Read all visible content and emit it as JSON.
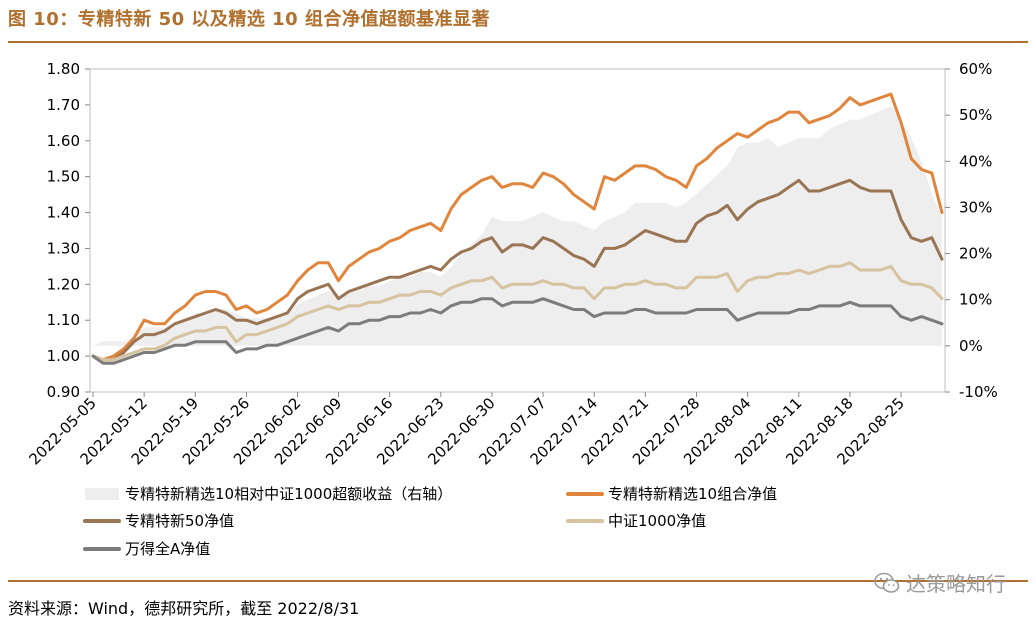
{
  "title": "图 10：专精特新 50 以及精选 10 组合净值超额基准显著",
  "source": "资料来源：Wind，德邦研究所，截至 2022/8/31",
  "watermark": "达策略知行",
  "chart_data": {
    "type": "line",
    "left_ylim": [
      0.9,
      1.8
    ],
    "left_yticks": [
      "0.90",
      "1.00",
      "1.10",
      "1.20",
      "1.30",
      "1.40",
      "1.50",
      "1.60",
      "1.70",
      "1.80"
    ],
    "right_ylim": [
      -0.1,
      0.6
    ],
    "right_yticks": [
      "-10%",
      "0%",
      "10%",
      "20%",
      "30%",
      "40%",
      "50%",
      "60%"
    ],
    "x_ticks": [
      "2022-05-05",
      "2022-05-12",
      "2022-05-19",
      "2022-05-26",
      "2022-06-02",
      "2022-06-09",
      "2022-06-16",
      "2022-06-23",
      "2022-06-30",
      "2022-07-07",
      "2022-07-14",
      "2022-07-21",
      "2022-07-28",
      "2022-08-04",
      "2022-08-11",
      "2022-08-18",
      "2022-08-25"
    ],
    "x_dates": [
      "2022-05-05",
      "2022-05-06",
      "2022-05-09",
      "2022-05-10",
      "2022-05-11",
      "2022-05-12",
      "2022-05-13",
      "2022-05-16",
      "2022-05-17",
      "2022-05-18",
      "2022-05-19",
      "2022-05-20",
      "2022-05-23",
      "2022-05-24",
      "2022-05-25",
      "2022-05-26",
      "2022-05-27",
      "2022-05-30",
      "2022-05-31",
      "2022-06-01",
      "2022-06-02",
      "2022-06-06",
      "2022-06-07",
      "2022-06-08",
      "2022-06-09",
      "2022-06-10",
      "2022-06-13",
      "2022-06-14",
      "2022-06-15",
      "2022-06-16",
      "2022-06-17",
      "2022-06-20",
      "2022-06-21",
      "2022-06-22",
      "2022-06-23",
      "2022-06-24",
      "2022-06-27",
      "2022-06-28",
      "2022-06-29",
      "2022-06-30",
      "2022-07-01",
      "2022-07-04",
      "2022-07-05",
      "2022-07-06",
      "2022-07-07",
      "2022-07-08",
      "2022-07-11",
      "2022-07-12",
      "2022-07-13",
      "2022-07-14",
      "2022-07-15",
      "2022-07-18",
      "2022-07-19",
      "2022-07-20",
      "2022-07-21",
      "2022-07-22",
      "2022-07-25",
      "2022-07-26",
      "2022-07-27",
      "2022-07-28",
      "2022-07-29",
      "2022-08-01",
      "2022-08-02",
      "2022-08-03",
      "2022-08-04",
      "2022-08-05",
      "2022-08-08",
      "2022-08-09",
      "2022-08-10",
      "2022-08-11",
      "2022-08-12",
      "2022-08-15",
      "2022-08-16",
      "2022-08-17",
      "2022-08-18",
      "2022-08-19",
      "2022-08-22",
      "2022-08-23",
      "2022-08-24",
      "2022-08-25",
      "2022-08-26",
      "2022-08-29",
      "2022-08-30",
      "2022-08-31"
    ],
    "series": [
      {
        "name": "专精特新精选10相对中证1000超额收益（右轴）",
        "axis": "right",
        "style": "area",
        "color": "#eeeeee",
        "values": [
          0.0,
          0.01,
          0.01,
          0.01,
          0.02,
          0.04,
          0.04,
          0.04,
          0.05,
          0.05,
          0.07,
          0.07,
          0.08,
          0.08,
          0.07,
          0.06,
          0.06,
          0.06,
          0.06,
          0.07,
          0.09,
          0.1,
          0.11,
          0.12,
          0.11,
          0.12,
          0.12,
          0.13,
          0.13,
          0.14,
          0.15,
          0.15,
          0.16,
          0.16,
          0.15,
          0.17,
          0.2,
          0.22,
          0.24,
          0.28,
          0.27,
          0.27,
          0.27,
          0.28,
          0.29,
          0.28,
          0.27,
          0.27,
          0.26,
          0.25,
          0.27,
          0.28,
          0.29,
          0.31,
          0.31,
          0.31,
          0.31,
          0.3,
          0.31,
          0.33,
          0.35,
          0.37,
          0.39,
          0.43,
          0.44,
          0.44,
          0.45,
          0.43,
          0.44,
          0.45,
          0.45,
          0.45,
          0.47,
          0.48,
          0.49,
          0.49,
          0.5,
          0.51,
          0.52,
          0.49,
          0.45,
          0.4,
          0.33,
          0.28
        ]
      },
      {
        "name": "专精特新精选10组合净值",
        "axis": "left",
        "style": "line",
        "color": "#e0853c",
        "values": [
          1.0,
          0.99,
          1.0,
          1.02,
          1.05,
          1.1,
          1.09,
          1.09,
          1.12,
          1.14,
          1.17,
          1.18,
          1.18,
          1.17,
          1.13,
          1.14,
          1.12,
          1.13,
          1.15,
          1.17,
          1.21,
          1.24,
          1.26,
          1.26,
          1.21,
          1.25,
          1.27,
          1.29,
          1.3,
          1.32,
          1.33,
          1.35,
          1.36,
          1.37,
          1.35,
          1.41,
          1.45,
          1.47,
          1.49,
          1.5,
          1.47,
          1.48,
          1.48,
          1.47,
          1.51,
          1.5,
          1.48,
          1.45,
          1.43,
          1.41,
          1.5,
          1.49,
          1.51,
          1.53,
          1.53,
          1.52,
          1.5,
          1.49,
          1.47,
          1.53,
          1.55,
          1.58,
          1.6,
          1.62,
          1.61,
          1.63,
          1.65,
          1.66,
          1.68,
          1.68,
          1.65,
          1.66,
          1.67,
          1.69,
          1.72,
          1.7,
          1.71,
          1.72,
          1.73,
          1.65,
          1.55,
          1.52,
          1.51,
          1.4
        ]
      },
      {
        "name": "专精特新50净值",
        "axis": "left",
        "style": "line",
        "color": "#9a7553",
        "values": [
          1.0,
          0.99,
          0.99,
          1.01,
          1.04,
          1.06,
          1.06,
          1.07,
          1.09,
          1.1,
          1.11,
          1.12,
          1.13,
          1.12,
          1.1,
          1.1,
          1.09,
          1.1,
          1.11,
          1.12,
          1.16,
          1.18,
          1.19,
          1.2,
          1.16,
          1.18,
          1.19,
          1.2,
          1.21,
          1.22,
          1.22,
          1.23,
          1.24,
          1.25,
          1.24,
          1.27,
          1.29,
          1.3,
          1.32,
          1.33,
          1.29,
          1.31,
          1.31,
          1.3,
          1.33,
          1.32,
          1.3,
          1.28,
          1.27,
          1.25,
          1.3,
          1.3,
          1.31,
          1.33,
          1.35,
          1.34,
          1.33,
          1.32,
          1.32,
          1.37,
          1.39,
          1.4,
          1.42,
          1.38,
          1.41,
          1.43,
          1.44,
          1.45,
          1.47,
          1.49,
          1.46,
          1.46,
          1.47,
          1.48,
          1.49,
          1.47,
          1.46,
          1.46,
          1.46,
          1.38,
          1.33,
          1.32,
          1.33,
          1.27
        ]
      },
      {
        "name": "中证1000净值",
        "axis": "left",
        "style": "line",
        "color": "#d6c3a0",
        "values": [
          1.0,
          0.99,
          0.99,
          1.0,
          1.01,
          1.02,
          1.02,
          1.03,
          1.05,
          1.06,
          1.07,
          1.07,
          1.08,
          1.08,
          1.04,
          1.06,
          1.06,
          1.07,
          1.08,
          1.09,
          1.11,
          1.12,
          1.13,
          1.14,
          1.13,
          1.14,
          1.14,
          1.15,
          1.15,
          1.16,
          1.17,
          1.17,
          1.18,
          1.18,
          1.17,
          1.19,
          1.2,
          1.21,
          1.21,
          1.22,
          1.19,
          1.2,
          1.2,
          1.2,
          1.21,
          1.2,
          1.2,
          1.19,
          1.19,
          1.16,
          1.19,
          1.19,
          1.2,
          1.2,
          1.21,
          1.2,
          1.2,
          1.19,
          1.19,
          1.22,
          1.22,
          1.22,
          1.23,
          1.18,
          1.21,
          1.22,
          1.22,
          1.23,
          1.23,
          1.24,
          1.23,
          1.24,
          1.25,
          1.25,
          1.26,
          1.24,
          1.24,
          1.24,
          1.25,
          1.21,
          1.2,
          1.2,
          1.19,
          1.16
        ]
      },
      {
        "name": "万得全A净值",
        "axis": "left",
        "style": "line",
        "color": "#7c7c7c",
        "values": [
          1.0,
          0.98,
          0.98,
          0.99,
          1.0,
          1.01,
          1.01,
          1.02,
          1.03,
          1.03,
          1.04,
          1.04,
          1.04,
          1.04,
          1.01,
          1.02,
          1.02,
          1.03,
          1.03,
          1.04,
          1.05,
          1.06,
          1.07,
          1.08,
          1.07,
          1.09,
          1.09,
          1.1,
          1.1,
          1.11,
          1.11,
          1.12,
          1.12,
          1.13,
          1.12,
          1.14,
          1.15,
          1.15,
          1.16,
          1.16,
          1.14,
          1.15,
          1.15,
          1.15,
          1.16,
          1.15,
          1.14,
          1.13,
          1.13,
          1.11,
          1.12,
          1.12,
          1.12,
          1.13,
          1.13,
          1.12,
          1.12,
          1.12,
          1.12,
          1.13,
          1.13,
          1.13,
          1.13,
          1.1,
          1.11,
          1.12,
          1.12,
          1.12,
          1.12,
          1.13,
          1.13,
          1.14,
          1.14,
          1.14,
          1.15,
          1.14,
          1.14,
          1.14,
          1.14,
          1.11,
          1.1,
          1.11,
          1.1,
          1.09
        ]
      }
    ]
  }
}
